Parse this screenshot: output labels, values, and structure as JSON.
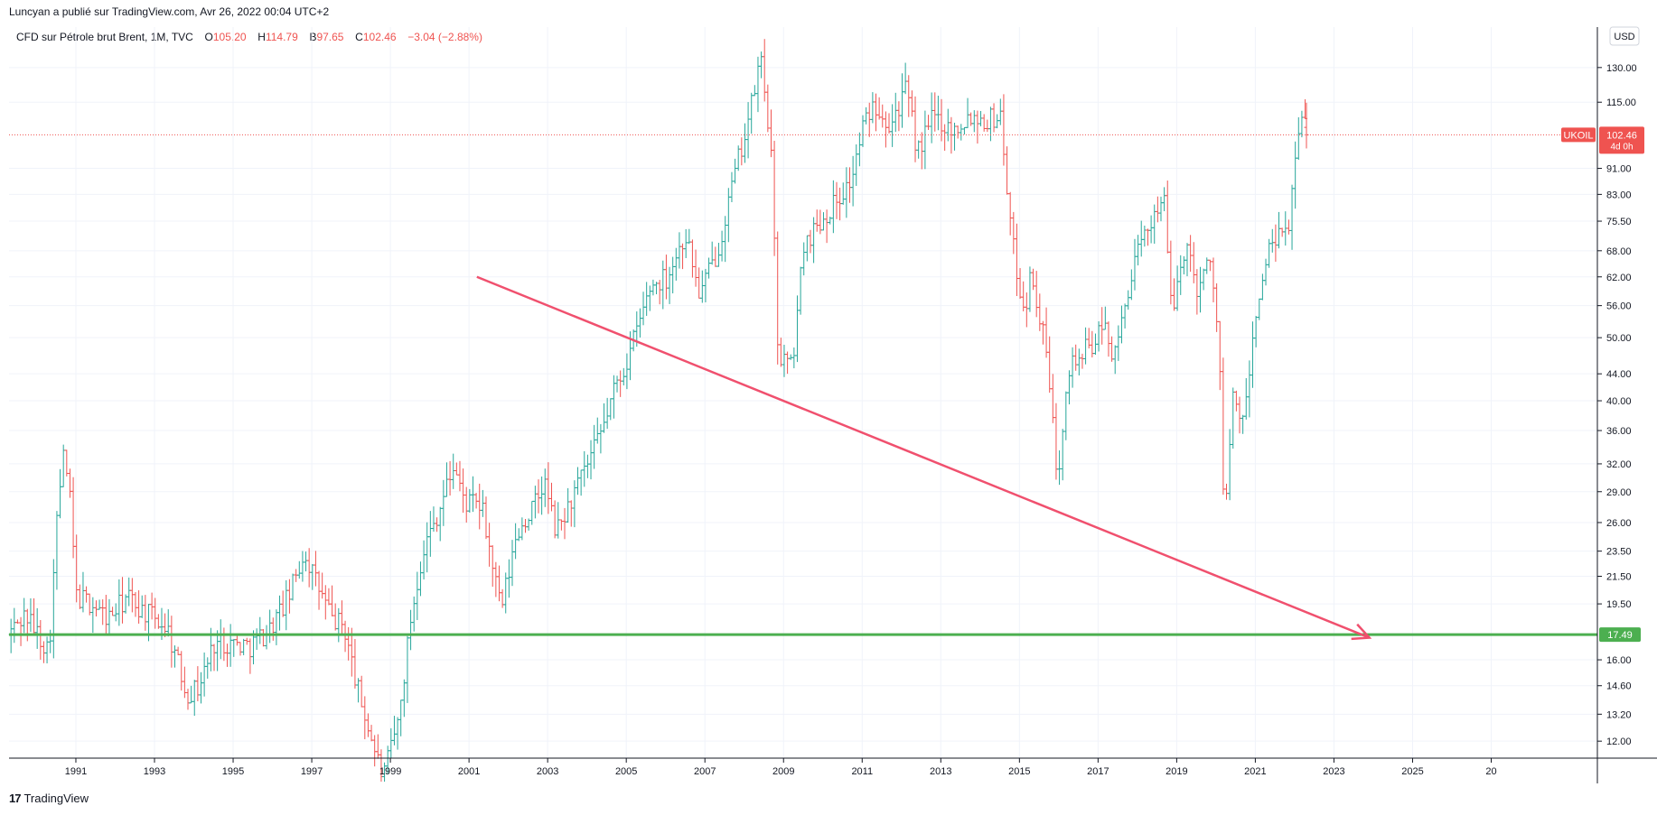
{
  "header": {
    "published_by": "Luncyan a publié sur TradingView.com, Avr 26, 2022 00:04 UTC+2"
  },
  "legend": {
    "symbol": "CFD sur Pétrole brut Brent, 1M, TVC",
    "o_label": "O",
    "o_value": "105.20",
    "h_label": "H",
    "h_value": "114.79",
    "b_label": "B",
    "b_value": "97.65",
    "c_label": "C",
    "c_value": "102.46",
    "change": "−3.04 (−2.88%)"
  },
  "currency_button": "USD",
  "footer": {
    "brand": "TradingView",
    "logo_glyph": "17"
  },
  "colors": {
    "up": "#26a69a",
    "down": "#ef5350",
    "green_line": "#4caf50",
    "trend": "#f0506e",
    "grid": "#f0f3fa"
  },
  "chart_data": {
    "type": "ohlc-bar",
    "y_scale": "log",
    "ylim": [
      11.3,
      150
    ],
    "xlim": [
      1989.3,
      2029.7
    ],
    "y_ticks": [
      "130.00",
      "115.00",
      "91.00",
      "83.00",
      "75.50",
      "68.00",
      "62.00",
      "56.00",
      "50.00",
      "44.00",
      "40.00",
      "36.00",
      "32.00",
      "29.00",
      "26.00",
      "23.50",
      "21.50",
      "19.50",
      "16.00",
      "14.60",
      "13.20",
      "12.00"
    ],
    "x_ticks": [
      "1991",
      "1993",
      "1995",
      "1997",
      "1999",
      "2001",
      "2003",
      "2005",
      "2007",
      "2009",
      "2011",
      "2013",
      "2015",
      "2017",
      "2019",
      "2021",
      "2023",
      "2025",
      "20"
    ],
    "price_labels": [
      {
        "symbol": "UKOIL",
        "value": "102.46",
        "countdown": "4d 0h"
      },
      {
        "value": "17.49"
      }
    ],
    "series": [
      {
        "anchors": [
          [
            1989.35,
            17.5
          ],
          [
            1989.8,
            18.8
          ],
          [
            1990.4,
            16.5
          ],
          [
            1990.6,
            26.0
          ],
          [
            1990.75,
            33.0
          ],
          [
            1990.9,
            30.0
          ],
          [
            1991.1,
            20.0
          ],
          [
            1991.5,
            19.5
          ],
          [
            1991.9,
            18.5
          ],
          [
            1992.4,
            20.0
          ],
          [
            1992.8,
            19.0
          ],
          [
            1993.4,
            18.0
          ],
          [
            1993.9,
            14.2
          ],
          [
            1994.2,
            14.5
          ],
          [
            1994.6,
            17.0
          ],
          [
            1995.0,
            17.0
          ],
          [
            1995.5,
            16.8
          ],
          [
            1996.0,
            17.8
          ],
          [
            1996.5,
            20.0
          ],
          [
            1996.9,
            23.5
          ],
          [
            1997.2,
            21.0
          ],
          [
            1997.6,
            18.5
          ],
          [
            1997.9,
            18.0
          ],
          [
            1998.3,
            14.0
          ],
          [
            1998.9,
            10.5
          ],
          [
            1999.3,
            13.0
          ],
          [
            1999.6,
            18.5
          ],
          [
            1999.9,
            23.5
          ],
          [
            2000.3,
            27.0
          ],
          [
            2000.7,
            32.0
          ],
          [
            2000.95,
            28.0
          ],
          [
            2001.4,
            27.5
          ],
          [
            2001.9,
            19.0
          ],
          [
            2002.3,
            25.0
          ],
          [
            2002.8,
            28.0
          ],
          [
            2003.0,
            30.0
          ],
          [
            2003.3,
            25.0
          ],
          [
            2003.9,
            30.0
          ],
          [
            2004.4,
            35.0
          ],
          [
            2004.8,
            42.0
          ],
          [
            2005.1,
            46.0
          ],
          [
            2005.7,
            60.0
          ],
          [
            2006.1,
            62.0
          ],
          [
            2006.6,
            72.0
          ],
          [
            2006.95,
            58.0
          ],
          [
            2007.4,
            68.0
          ],
          [
            2007.9,
            92.0
          ],
          [
            2008.25,
            112.0
          ],
          [
            2008.5,
            135.0
          ],
          [
            2008.75,
            100.0
          ],
          [
            2008.95,
            47.0
          ],
          [
            2009.3,
            45.0
          ],
          [
            2009.6,
            70.0
          ],
          [
            2010.2,
            78.0
          ],
          [
            2010.8,
            87.0
          ],
          [
            2011.1,
            105.0
          ],
          [
            2011.4,
            115.0
          ],
          [
            2011.8,
            107.0
          ],
          [
            2012.2,
            120.0
          ],
          [
            2012.5,
            96.0
          ],
          [
            2012.9,
            110.0
          ],
          [
            2013.4,
            104.0
          ],
          [
            2013.8,
            110.0
          ],
          [
            2014.3,
            108.0
          ],
          [
            2014.6,
            110.0
          ],
          [
            2014.9,
            70.0
          ],
          [
            2015.2,
            55.0
          ],
          [
            2015.4,
            63.0
          ],
          [
            2015.8,
            46.0
          ],
          [
            2016.05,
            30.0
          ],
          [
            2016.3,
            45.0
          ],
          [
            2016.8,
            48.0
          ],
          [
            2017.3,
            52.0
          ],
          [
            2017.5,
            46.0
          ],
          [
            2017.9,
            62.0
          ],
          [
            2018.4,
            75.0
          ],
          [
            2018.75,
            84.0
          ],
          [
            2018.95,
            54.0
          ],
          [
            2019.3,
            70.0
          ],
          [
            2019.6,
            60.0
          ],
          [
            2019.9,
            66.0
          ],
          [
            2020.15,
            52.0
          ],
          [
            2020.3,
            25.0
          ],
          [
            2020.5,
            40.0
          ],
          [
            2020.8,
            37.0
          ],
          [
            2021.1,
            55.0
          ],
          [
            2021.5,
            70.0
          ],
          [
            2021.9,
            72.0
          ],
          [
            2022.15,
            100.0
          ],
          [
            2022.28,
            107.0
          ]
        ],
        "last_bar": {
          "x": 2022.3,
          "open": 105.2,
          "high": 114.79,
          "low": 97.65,
          "close": 102.46
        }
      }
    ],
    "lines": [
      {
        "kind": "horizontal",
        "value": 17.49,
        "color": "green"
      },
      {
        "kind": "trend-arrow",
        "from": [
          2001.2,
          62.0
        ],
        "to": [
          2023.9,
          17.3
        ],
        "color": "red"
      }
    ]
  }
}
